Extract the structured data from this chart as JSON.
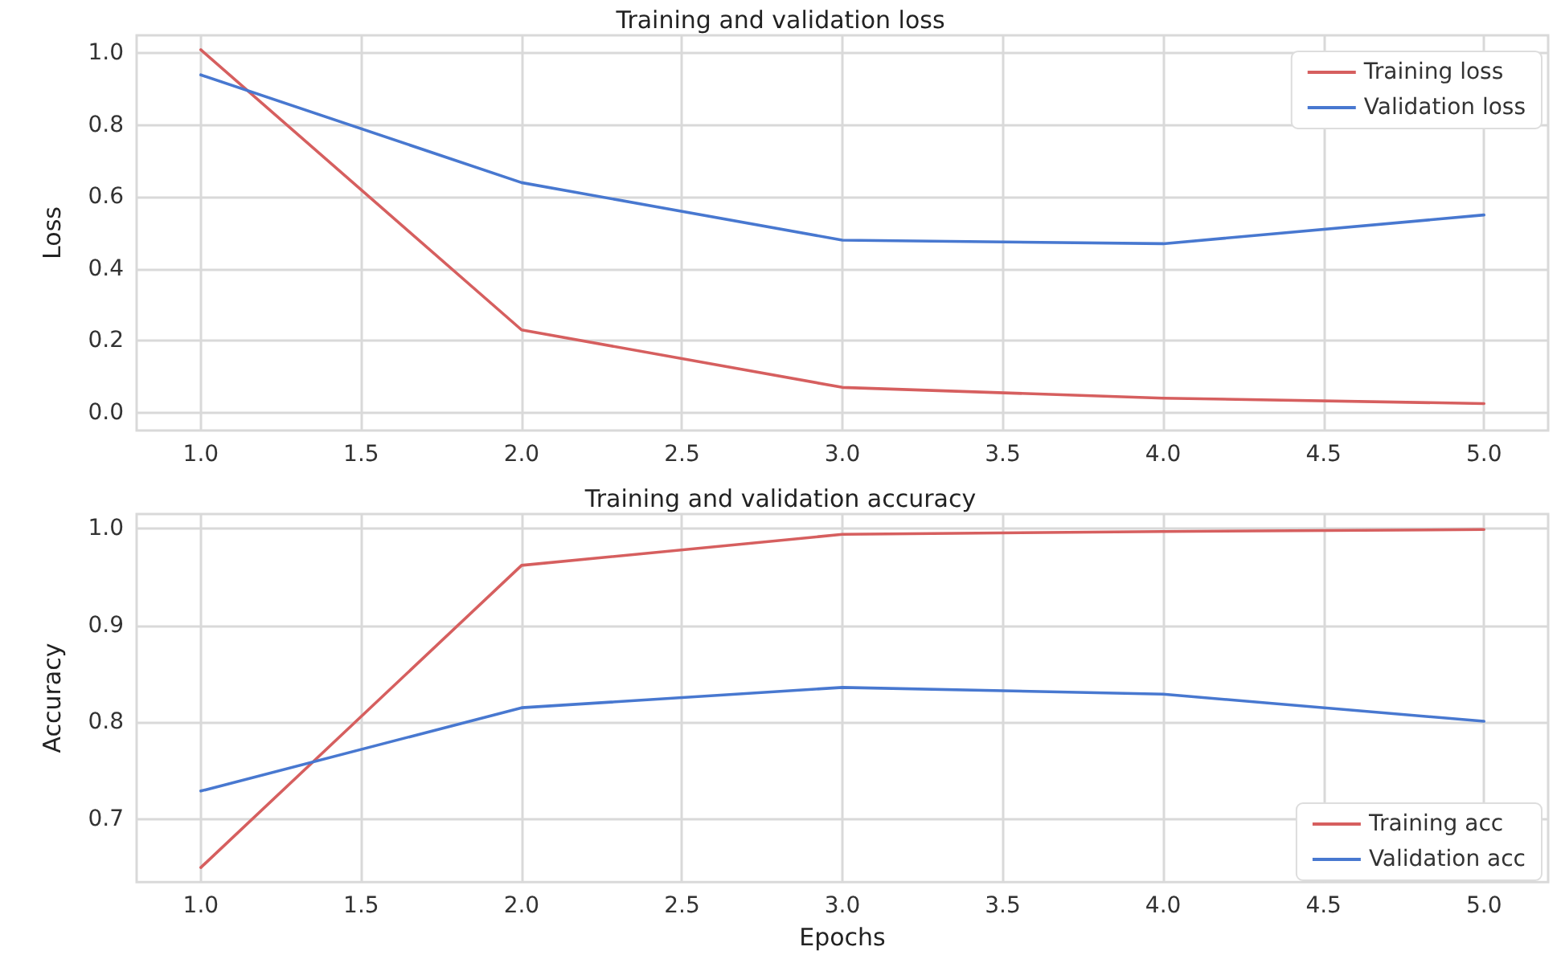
{
  "chart_data": [
    {
      "type": "line",
      "title": "Training and validation loss",
      "ylabel": "Loss",
      "x": [
        1,
        2,
        3,
        4,
        5
      ],
      "series": [
        {
          "name": "Training loss",
          "color": "#d65f5f",
          "values": [
            1.01,
            0.23,
            0.07,
            0.04,
            0.025
          ]
        },
        {
          "name": "Validation loss",
          "color": "#4878d0",
          "values": [
            0.94,
            0.64,
            0.48,
            0.47,
            0.55
          ]
        }
      ],
      "xlim": [
        0.8,
        5.2
      ],
      "xticks": [
        {
          "value": 1,
          "label": "1.0"
        },
        {
          "value": 1.5,
          "label": "1.5"
        },
        {
          "value": 2,
          "label": "2.0"
        },
        {
          "value": 2.5,
          "label": "2.5"
        },
        {
          "value": 3,
          "label": "3.0"
        },
        {
          "value": 3.5,
          "label": "3.5"
        },
        {
          "value": 4,
          "label": "4.0"
        },
        {
          "value": 4.5,
          "label": "4.5"
        },
        {
          "value": 5,
          "label": "5.0"
        }
      ],
      "ylim": [
        -0.05,
        1.05
      ],
      "yticks": [
        {
          "value": 0,
          "label": "0.0"
        },
        {
          "value": 0.2,
          "label": "0.2"
        },
        {
          "value": 0.4,
          "label": "0.4"
        },
        {
          "value": 0.6,
          "label": "0.6"
        },
        {
          "value": 0.8,
          "label": "0.8"
        },
        {
          "value": 1,
          "label": "1.0"
        }
      ],
      "grid": true,
      "legend": "top right",
      "line_style": "solid"
    },
    {
      "type": "line",
      "title": "Training and validation accuracy",
      "xlabel": "Epochs",
      "ylabel": "Accuracy",
      "x": [
        1,
        2,
        3,
        4,
        5
      ],
      "series": [
        {
          "name": "Training acc",
          "color": "#d65f5f",
          "values": [
            0.65,
            0.962,
            0.994,
            0.997,
            0.999
          ]
        },
        {
          "name": "Validation acc",
          "color": "#4878d0",
          "values": [
            0.729,
            0.815,
            0.836,
            0.829,
            0.801
          ]
        }
      ],
      "xlim": [
        0.8,
        5.2
      ],
      "xticks": [
        {
          "value": 1,
          "label": "1.0"
        },
        {
          "value": 1.5,
          "label": "1.5"
        },
        {
          "value": 2,
          "label": "2.0"
        },
        {
          "value": 2.5,
          "label": "2.5"
        },
        {
          "value": 3,
          "label": "3.0"
        },
        {
          "value": 3.5,
          "label": "3.5"
        },
        {
          "value": 4,
          "label": "4.0"
        },
        {
          "value": 4.5,
          "label": "4.5"
        },
        {
          "value": 5,
          "label": "5.0"
        }
      ],
      "ylim": [
        0.635,
        1.015
      ],
      "yticks": [
        {
          "value": 0.7,
          "label": "0.7"
        },
        {
          "value": 0.8,
          "label": "0.8"
        },
        {
          "value": 0.9,
          "label": "0.9"
        },
        {
          "value": 1,
          "label": "1.0"
        }
      ],
      "grid": true,
      "legend": "bottom right",
      "line_style": "solid"
    }
  ]
}
